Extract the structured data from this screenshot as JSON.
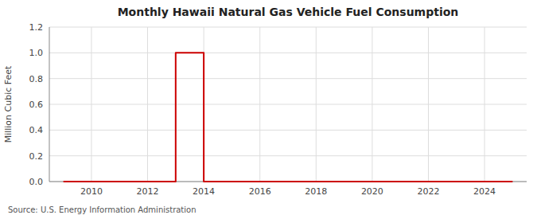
{
  "chart_data": {
    "type": "line",
    "title": "Monthly Hawaii Natural Gas Vehicle Fuel Consumption",
    "ylabel": "Million Cubic Feet",
    "annotations": [
      "Source: U.S. Energy Information Administration"
    ],
    "color": "#cc0000",
    "x": [
      2009.0,
      2013.0,
      2013.0,
      2013.083,
      2013.167,
      2013.25,
      2013.333,
      2013.417,
      2013.5,
      2013.583,
      2013.667,
      2013.75,
      2013.833,
      2013.917,
      2014.0,
      2014.0,
      2025.0
    ],
    "values": [
      0.0,
      0.0,
      1.0,
      1.0,
      1.0,
      1.0,
      1.0,
      1.0,
      1.0,
      1.0,
      1.0,
      1.0,
      1.0,
      1.0,
      1.0,
      0.0,
      0.0
    ],
    "xlim": [
      2008.5,
      2025.5
    ],
    "ylim": [
      0,
      1.2
    ],
    "xticks": [
      2010,
      2012,
      2014,
      2016,
      2018,
      2020,
      2022,
      2024
    ],
    "yticks": [
      {
        "value": 0.0,
        "label": "0.0"
      },
      0.2,
      0.4,
      0.6,
      0.8,
      {
        "value": 1.0,
        "label": "1.0"
      },
      1.2
    ],
    "grid": true
  }
}
